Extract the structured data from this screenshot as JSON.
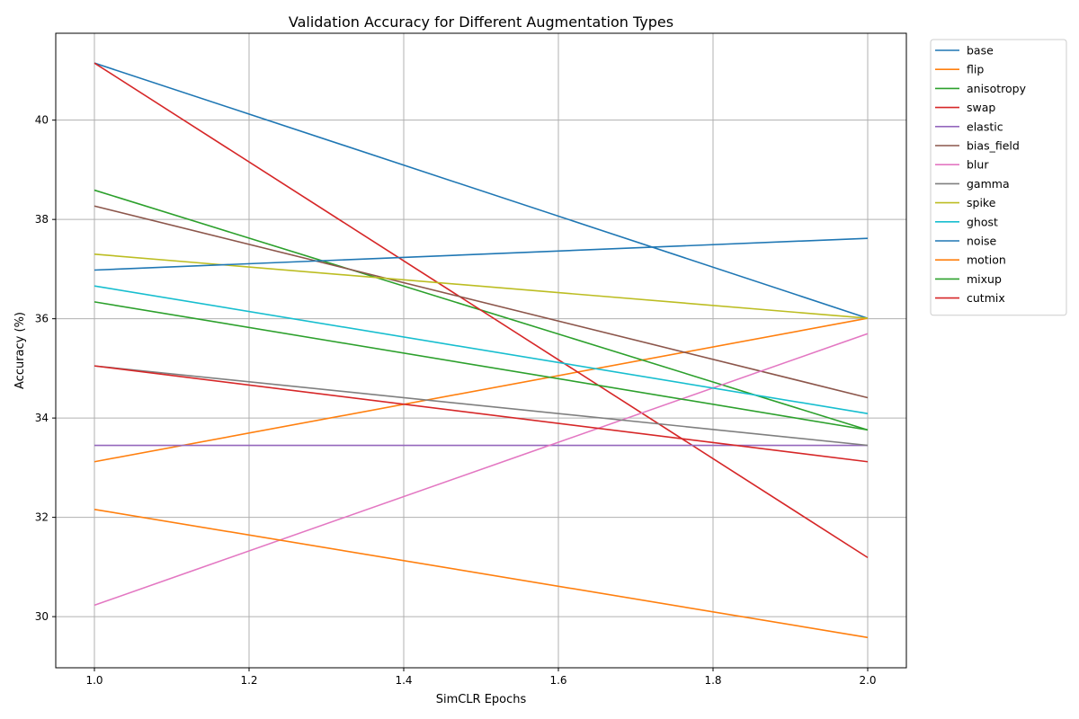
{
  "chart_data": {
    "type": "line",
    "title": "Validation Accuracy for Different Augmentation Types",
    "xlabel": "SimCLR Epochs",
    "ylabel": "Accuracy (%)",
    "x": [
      1,
      2
    ],
    "xlim": [
      0.95,
      2.05
    ],
    "ylim": [
      28.97,
      41.75
    ],
    "xticks": [
      1.0,
      1.2,
      1.4,
      1.6,
      1.8,
      2.0
    ],
    "xtick_labels": [
      "1.0",
      "1.2",
      "1.4",
      "1.6",
      "1.8",
      "2.0"
    ],
    "yticks": [
      30,
      32,
      34,
      36,
      38,
      40
    ],
    "ytick_labels": [
      "30",
      "32",
      "34",
      "36",
      "38",
      "40"
    ],
    "grid": true,
    "legend_position": "outside-top-right",
    "series": [
      {
        "name": "base",
        "color": "#1f77b4",
        "values": [
          41.15,
          36.01
        ]
      },
      {
        "name": "flip",
        "color": "#ff7f0e",
        "values": [
          33.12,
          36.01
        ]
      },
      {
        "name": "anisotropy",
        "color": "#2ca02c",
        "values": [
          38.59,
          33.76
        ]
      },
      {
        "name": "swap",
        "color": "#d62728",
        "values": [
          41.15,
          31.19
        ]
      },
      {
        "name": "elastic",
        "color": "#9467bd",
        "values": [
          33.45,
          33.45
        ]
      },
      {
        "name": "bias_field",
        "color": "#8c564b",
        "values": [
          38.27,
          34.41
        ]
      },
      {
        "name": "blur",
        "color": "#e377c2",
        "values": [
          30.23,
          35.7
        ]
      },
      {
        "name": "gamma",
        "color": "#7f7f7f",
        "values": [
          35.05,
          33.45
        ]
      },
      {
        "name": "spike",
        "color": "#bcbd22",
        "values": [
          37.3,
          36.01
        ]
      },
      {
        "name": "ghost",
        "color": "#17becf",
        "values": [
          36.66,
          34.09
        ]
      },
      {
        "name": "noise",
        "color": "#1f77b4",
        "values": [
          36.98,
          37.62
        ]
      },
      {
        "name": "motion",
        "color": "#ff7f0e",
        "values": [
          32.16,
          29.58
        ]
      },
      {
        "name": "mixup",
        "color": "#2ca02c",
        "values": [
          36.34,
          33.76
        ]
      },
      {
        "name": "cutmix",
        "color": "#d62728",
        "values": [
          35.05,
          33.12
        ]
      }
    ]
  }
}
